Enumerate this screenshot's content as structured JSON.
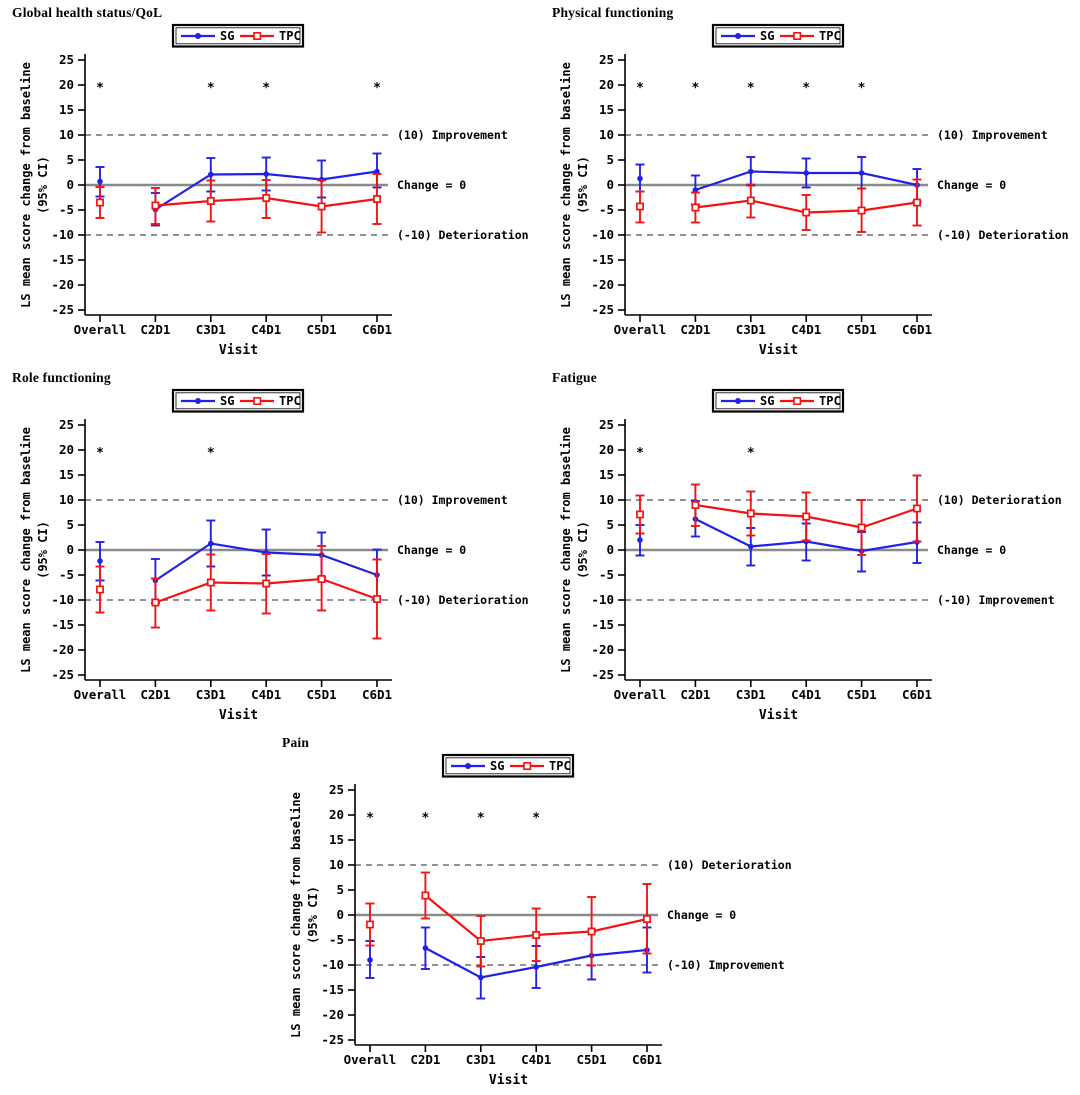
{
  "figure": {
    "background": "#ffffff",
    "description_layout": "five line charts: two rows of two, one centered bottom"
  },
  "chart_common": {
    "type": "line",
    "xlabel": "Visit",
    "ylabel_line1": "LS mean score change from baseline",
    "ylabel_line2": "(95% CI)",
    "categories": [
      "Overall",
      "C2D1",
      "C3D1",
      "C4D1",
      "C5D1",
      "C6D1"
    ],
    "yticks": [
      25,
      20,
      15,
      10,
      5,
      0,
      -5,
      -10,
      -15,
      -20,
      -25
    ],
    "ylim": [
      -25,
      25
    ],
    "upper_ref_y": 10,
    "lower_ref_y": -10,
    "zero_line_label": "Change = 0",
    "asterisk_symbol": "*",
    "asterisk_y": 20,
    "first_point_disconnected": true,
    "legend": {
      "entries": [
        {
          "label": "SG",
          "color": "#2121e8",
          "marker": "filled-circle"
        },
        {
          "label": "TPC",
          "color": "#f41212",
          "marker": "open-square"
        }
      ]
    },
    "colors": {
      "sg": "#2121e8",
      "tpc": "#f41212",
      "zero_line": "#8a8a8a",
      "ref_line": "#6e6e6e",
      "axis": "#000000",
      "asterisk": "#000000"
    }
  },
  "chart_data": [
    {
      "title": "Global health status/QoL",
      "type": "line",
      "upper_ref_label": "(10) Improvement",
      "lower_ref_label": "(-10) Deterioration",
      "asterisks": [
        "Overall",
        "C3D1",
        "C4D1",
        "C6D1"
      ],
      "series": [
        {
          "name": "SG",
          "values": [
            0.7,
            -4.9,
            2.1,
            2.2,
            1.1,
            2.7
          ],
          "ci_low": [
            -2.3,
            -8.1,
            -1.3,
            -1.1,
            -2.5,
            -0.5
          ],
          "ci_high": [
            3.6,
            -1.6,
            5.4,
            5.5,
            4.9,
            6.3
          ]
        },
        {
          "name": "TPC",
          "values": [
            -3.5,
            -4.1,
            -3.2,
            -2.6,
            -4.3,
            -2.8
          ],
          "ci_low": [
            -6.6,
            -7.8,
            -7.3,
            -6.6,
            -9.5,
            -7.8
          ],
          "ci_high": [
            -0.4,
            -0.6,
            0.9,
            1.0,
            0.9,
            2.2
          ]
        }
      ]
    },
    {
      "title": "Physical functioning",
      "type": "line",
      "upper_ref_label": "(10) Improvement",
      "lower_ref_label": "(-10) Deterioration",
      "asterisks": [
        "Overall",
        "C2D1",
        "C3D1",
        "C4D1",
        "C5D1"
      ],
      "series": [
        {
          "name": "SG",
          "values": [
            1.3,
            -1.0,
            2.7,
            2.4,
            2.4,
            0.0
          ],
          "ci_low": [
            -1.3,
            -3.9,
            -0.1,
            -0.5,
            -0.7,
            -3.3
          ],
          "ci_high": [
            4.1,
            1.9,
            5.6,
            5.3,
            5.6,
            3.2
          ]
        },
        {
          "name": "TPC",
          "values": [
            -4.3,
            -4.5,
            -3.1,
            -5.5,
            -5.1,
            -3.5
          ],
          "ci_low": [
            -7.5,
            -7.5,
            -6.5,
            -9.0,
            -9.4,
            -8.1
          ],
          "ci_high": [
            -1.3,
            -1.5,
            0.1,
            -2.0,
            -0.7,
            1.1
          ]
        }
      ]
    },
    {
      "title": "Role functioning",
      "type": "line",
      "upper_ref_label": "(10) Improvement",
      "lower_ref_label": "(-10) Deterioration",
      "asterisks": [
        "Overall",
        "C3D1"
      ],
      "series": [
        {
          "name": "SG",
          "values": [
            -2.2,
            -6.1,
            1.3,
            -0.5,
            -1.0,
            -5.0
          ],
          "ci_low": [
            -6.1,
            -10.6,
            -3.3,
            -5.1,
            -5.5,
            -9.9
          ],
          "ci_high": [
            1.6,
            -1.8,
            5.9,
            4.1,
            3.5,
            0.1
          ]
        },
        {
          "name": "TPC",
          "values": [
            -7.9,
            -10.5,
            -6.5,
            -6.7,
            -5.8,
            -9.8
          ],
          "ci_low": [
            -12.5,
            -15.5,
            -12.1,
            -12.7,
            -12.1,
            -17.7
          ],
          "ci_high": [
            -3.3,
            -5.7,
            -0.9,
            -0.8,
            0.8,
            -1.9
          ]
        }
      ]
    },
    {
      "title": "Fatigue",
      "type": "line",
      "upper_ref_label": "(10) Deterioration",
      "lower_ref_label": "(-10) Improvement",
      "asterisks": [
        "Overall",
        "C3D1"
      ],
      "series": [
        {
          "name": "SG",
          "values": [
            2.0,
            6.2,
            0.7,
            1.7,
            -0.2,
            1.6
          ],
          "ci_low": [
            -1.1,
            2.7,
            -3.1,
            -2.1,
            -4.3,
            -2.6
          ],
          "ci_high": [
            5.0,
            9.8,
            4.4,
            5.3,
            3.6,
            5.5
          ]
        },
        {
          "name": "TPC",
          "values": [
            7.1,
            9.0,
            7.3,
            6.7,
            4.5,
            8.3
          ],
          "ci_low": [
            3.3,
            4.8,
            2.9,
            1.9,
            -1.0,
            1.7
          ],
          "ci_high": [
            10.9,
            13.1,
            11.7,
            11.5,
            10.0,
            14.9
          ]
        }
      ]
    },
    {
      "title": "Pain",
      "type": "line",
      "upper_ref_label": "(10) Deterioration",
      "lower_ref_label": "(-10) Improvement",
      "asterisks": [
        "Overall",
        "C2D1",
        "C3D1",
        "C4D1"
      ],
      "series": [
        {
          "name": "SG",
          "values": [
            -9.0,
            -6.6,
            -12.5,
            -10.4,
            -8.1,
            -7.0
          ],
          "ci_low": [
            -12.6,
            -10.8,
            -16.7,
            -14.6,
            -12.9,
            -11.5
          ],
          "ci_high": [
            -5.2,
            -2.5,
            -8.4,
            -6.2,
            -3.3,
            -2.5
          ]
        },
        {
          "name": "TPC",
          "values": [
            -1.9,
            3.9,
            -5.2,
            -4.0,
            -3.3,
            -0.8
          ],
          "ci_low": [
            -6.1,
            -0.7,
            -10.3,
            -9.2,
            -10.1,
            -7.7
          ],
          "ci_high": [
            2.3,
            8.5,
            -0.2,
            1.3,
            3.6,
            6.2
          ]
        }
      ]
    }
  ]
}
